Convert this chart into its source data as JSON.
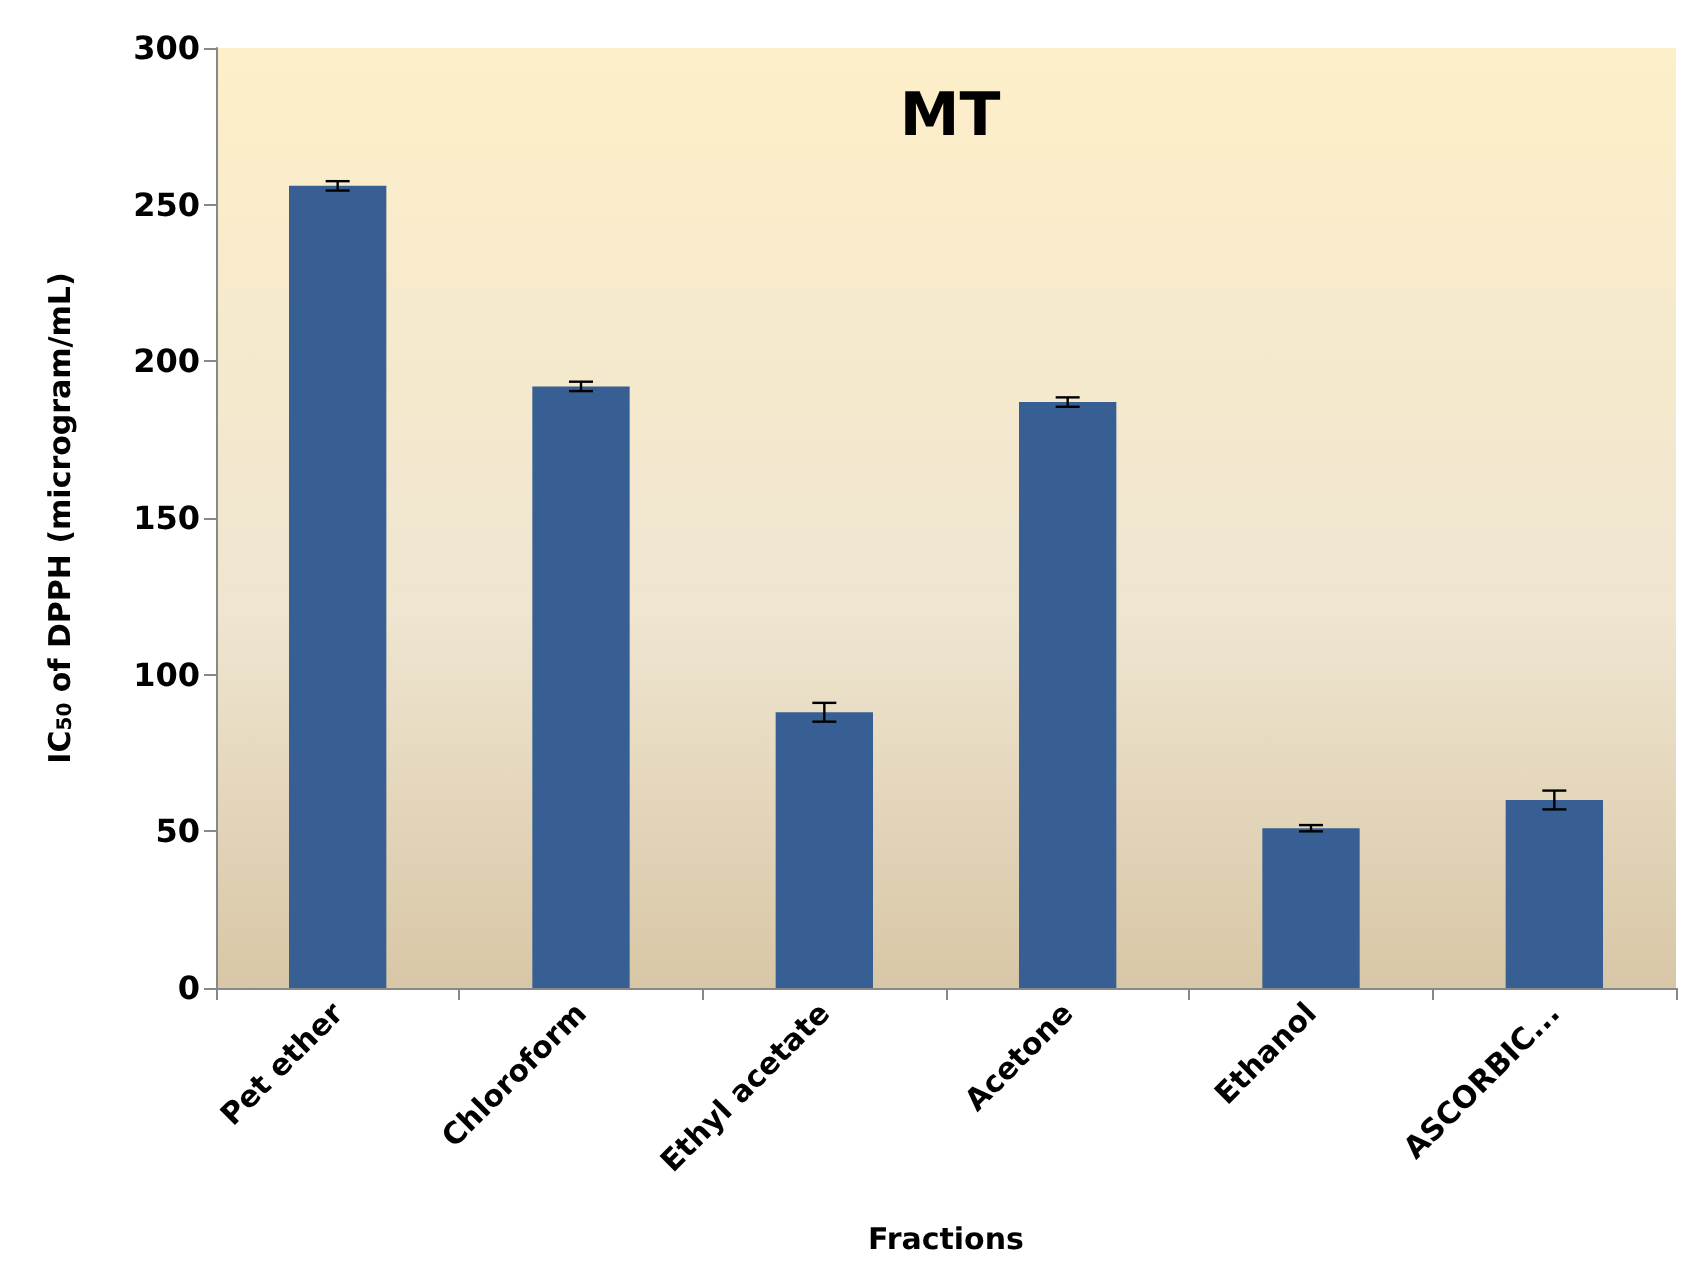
{
  "chart_data": {
    "type": "bar",
    "title": "MT",
    "xlabel": "Fractions",
    "ylabel": "IC$_{50}$ of DPPH (microgram/mL)",
    "categories": [
      "Pet ether",
      "Chloroform",
      "Ethyl acetate",
      "Acetone",
      "Ethanol",
      "ASCORBIC..."
    ],
    "values": [
      256,
      192,
      88,
      187,
      51,
      60
    ],
    "errors": [
      1.5,
      1.5,
      3,
      1.5,
      1,
      3
    ],
    "color": "#375f93",
    "ylim": [
      0,
      300
    ],
    "yticks": [
      0,
      50,
      100,
      150,
      200,
      250,
      300
    ],
    "grid": false
  }
}
